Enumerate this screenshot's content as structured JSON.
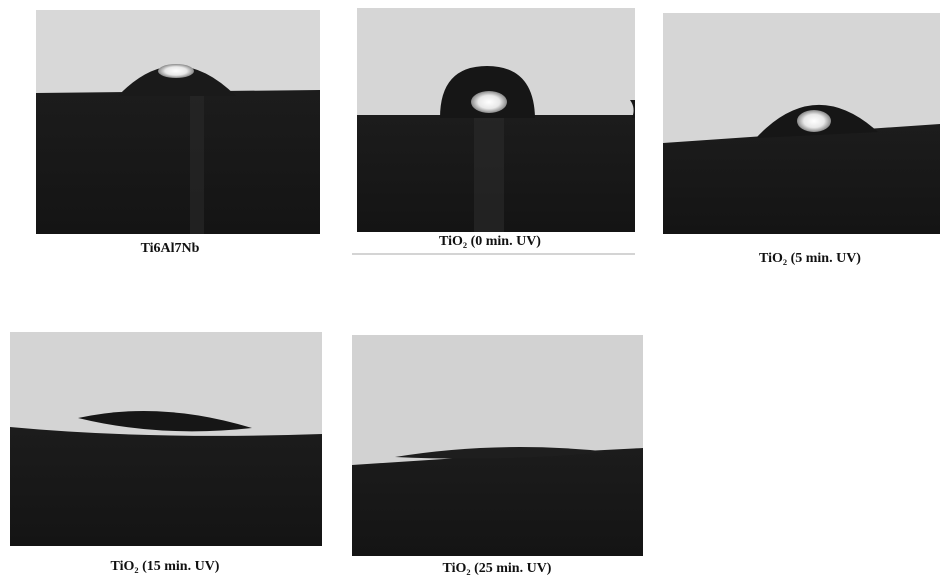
{
  "panels": [
    {
      "caption": "Ti6Al7Nb"
    },
    {
      "caption": "TiO₂  (0 min. UV)"
    },
    {
      "caption": "TiO₂ (5 min. UV)"
    },
    {
      "caption": "TiO₂ (15 min. UV)"
    },
    {
      "caption": "TiO₂ (25 min. UV)"
    }
  ]
}
